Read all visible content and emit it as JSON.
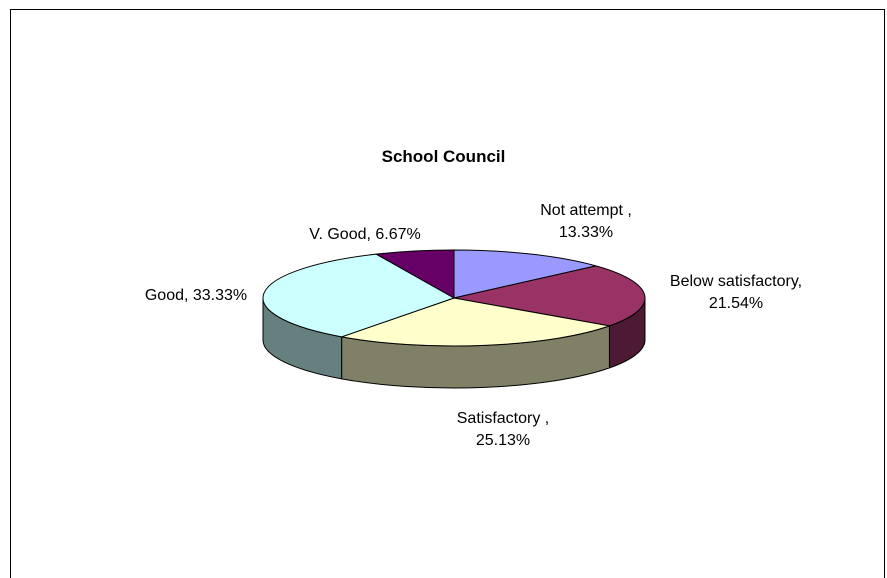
{
  "chart_data": {
    "type": "pie",
    "title": "School Council",
    "slices": [
      {
        "label": "Not attempt",
        "value": 13.33,
        "label_lines": [
          "Not attempt ,",
          "13.33%"
        ],
        "color_top": "#9999ff",
        "color_side": "#7373bf"
      },
      {
        "label": "Below satisfactory",
        "value": 21.54,
        "label_lines": [
          "Below satisfactory,",
          "21.54%"
        ],
        "color_top": "#993366",
        "color_side": "#4d1a33"
      },
      {
        "label": "Satisfactory",
        "value": 25.13,
        "label_lines": [
          "Satisfactory ,",
          "25.13%"
        ],
        "color_top": "#ffffcc",
        "color_side": "#808066"
      },
      {
        "label": "Good",
        "value": 33.33,
        "label_lines": [
          "Good, 33.33%"
        ],
        "color_top": "#ccffff",
        "color_side": "#668080"
      },
      {
        "label": "V. Good",
        "value": 6.67,
        "label_lines": [
          "V. Good, 6.67%"
        ],
        "color_top": "#660066",
        "color_side": "#330033"
      }
    ],
    "three_d": true,
    "legend": "none"
  }
}
